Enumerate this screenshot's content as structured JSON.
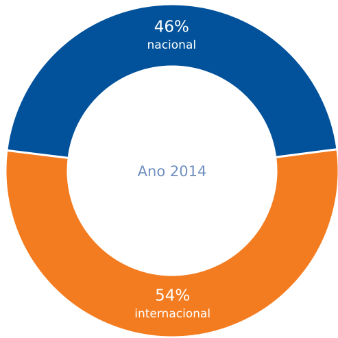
{
  "chart_data": {
    "type": "donut",
    "categories": [
      "nacional",
      "internacional"
    ],
    "values": [
      46,
      54
    ],
    "value_labels": [
      "46%",
      "54%"
    ],
    "colors": [
      "#02529b",
      "#f47c20"
    ],
    "center_label": "Ano 2014"
  }
}
